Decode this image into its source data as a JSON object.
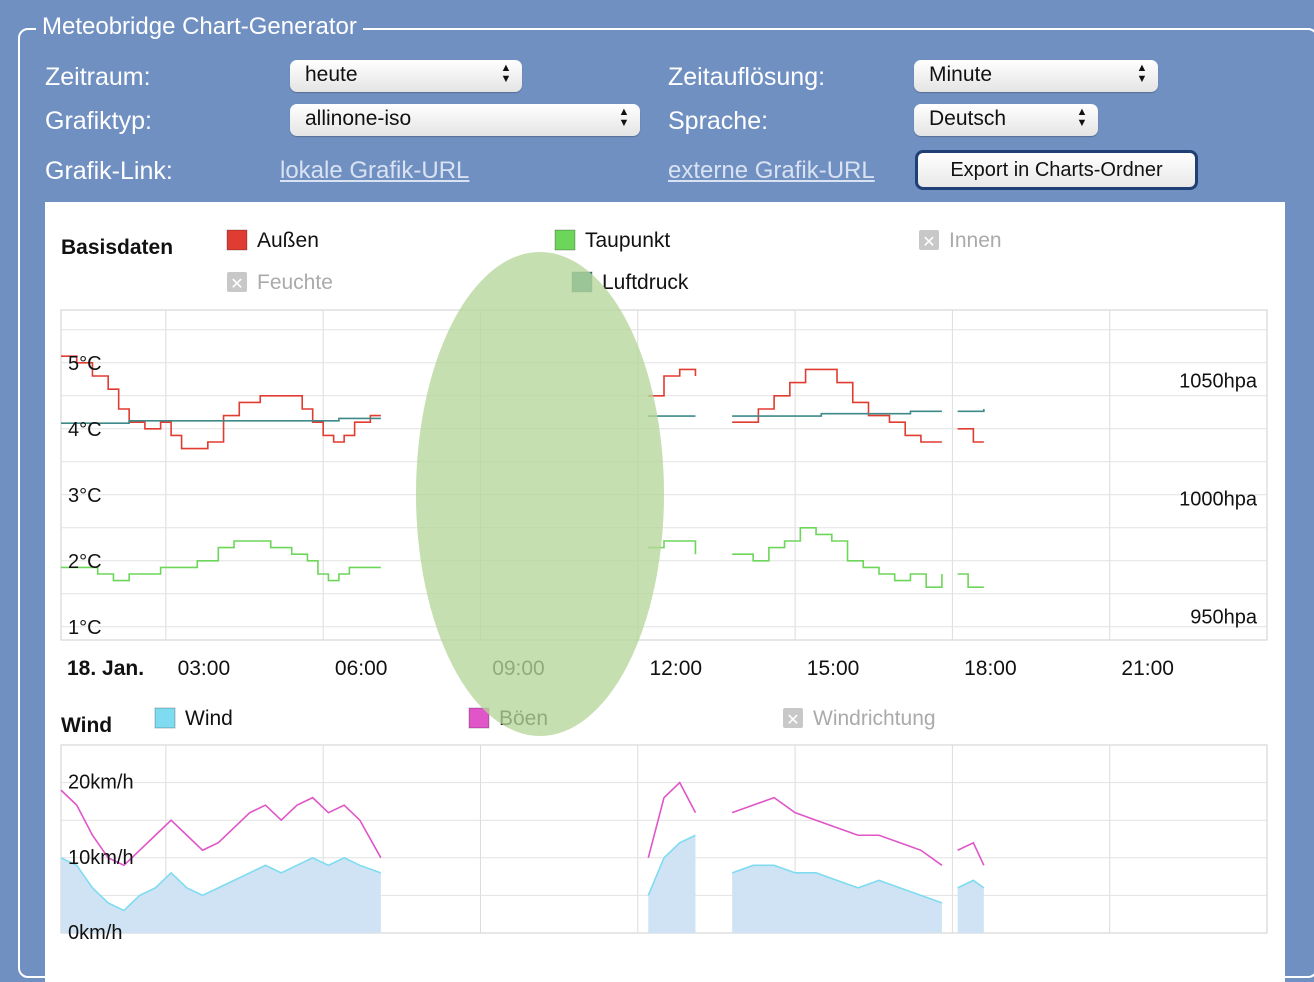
{
  "form": {
    "title": "Meteobridge Chart-Generator",
    "zeitraum_label": "Zeitraum:",
    "zeitraum_value": "heute",
    "zeitaufloesung_label": "Zeitauflösung:",
    "zeitaufloesung_value": "Minute",
    "grafiktyp_label": "Grafiktyp:",
    "grafiktyp_value": "allinone-iso",
    "sprache_label": "Sprache:",
    "sprache_value": "Deutsch",
    "grafiklink_label": "Grafik-Link:",
    "local_link": "lokale Grafik-URL",
    "external_link": "externe Grafik-URL",
    "export_button": "Export in Charts-Ordner"
  },
  "colors": {
    "background": "#7190c2",
    "temp_out": "#e03c31",
    "dewpoint": "#6dd65a",
    "pressure": "#3f8a88",
    "wind": "#7fdcf0",
    "wind_fill": "#cfe3f4",
    "gust": "#e055c8",
    "overlay": "#b5d69a"
  },
  "chart_data": [
    {
      "type": "line",
      "title": "Basisdaten",
      "date_label": "18. Jan.",
      "x_ticks": [
        "03:00",
        "06:00",
        "09:00",
        "12:00",
        "15:00",
        "18:00",
        "21:00"
      ],
      "x_range_hours": [
        1.0,
        24.0
      ],
      "y_left_ticks": [
        "5°C",
        "4°C",
        "3°C",
        "2°C",
        "1°C"
      ],
      "y_left_range": [
        0.8,
        5.8
      ],
      "y_right_ticks": [
        "1050hpa",
        "1000hpa",
        "950hpa"
      ],
      "y_right_range": [
        940,
        1080
      ],
      "legend": [
        {
          "name": "Außen",
          "color_key": "temp_out",
          "enabled": true
        },
        {
          "name": "Taupunkt",
          "color_key": "dewpoint",
          "enabled": true
        },
        {
          "name": "Innen",
          "color_key": "",
          "enabled": false
        },
        {
          "name": "Feuchte",
          "color_key": "",
          "enabled": false
        },
        {
          "name": "Luftdruck",
          "color_key": "pressure",
          "enabled": true
        }
      ],
      "series": [
        {
          "name": "Außen",
          "color_key": "temp_out",
          "axis": "left",
          "segments": [
            [
              [
                1.0,
                5.1
              ],
              [
                1.3,
                5.0
              ],
              [
                1.6,
                4.8
              ],
              [
                1.9,
                4.6
              ],
              [
                2.1,
                4.3
              ],
              [
                2.3,
                4.1
              ],
              [
                2.6,
                4.0
              ],
              [
                2.9,
                4.1
              ],
              [
                3.1,
                3.9
              ],
              [
                3.3,
                3.7
              ],
              [
                3.6,
                3.7
              ],
              [
                3.8,
                3.8
              ],
              [
                4.1,
                4.2
              ],
              [
                4.4,
                4.4
              ],
              [
                4.8,
                4.5
              ],
              [
                5.3,
                4.5
              ],
              [
                5.6,
                4.3
              ],
              [
                5.8,
                4.1
              ],
              [
                6.0,
                3.9
              ],
              [
                6.2,
                3.8
              ],
              [
                6.4,
                3.9
              ],
              [
                6.6,
                4.1
              ],
              [
                6.9,
                4.2
              ],
              [
                7.1,
                4.2
              ]
            ],
            [
              [
                12.2,
                4.5
              ],
              [
                12.5,
                4.8
              ],
              [
                12.8,
                4.9
              ],
              [
                13.1,
                4.8
              ]
            ],
            [
              [
                13.8,
                4.1
              ],
              [
                14.3,
                4.3
              ],
              [
                14.6,
                4.5
              ],
              [
                14.9,
                4.7
              ],
              [
                15.2,
                4.9
              ],
              [
                15.5,
                4.9
              ],
              [
                15.8,
                4.7
              ],
              [
                16.1,
                4.4
              ],
              [
                16.4,
                4.2
              ],
              [
                16.8,
                4.1
              ],
              [
                17.1,
                3.9
              ],
              [
                17.4,
                3.8
              ],
              [
                17.8,
                3.8
              ]
            ],
            [
              [
                18.1,
                4.0
              ],
              [
                18.4,
                3.8
              ],
              [
                18.6,
                3.8
              ]
            ]
          ]
        },
        {
          "name": "Luftdruck",
          "color_key": "pressure",
          "axis": "right",
          "segments": [
            [
              [
                1.0,
                1032
              ],
              [
                1.8,
                1032
              ],
              [
                2.3,
                1033
              ],
              [
                4.0,
                1033
              ],
              [
                5.8,
                1033
              ],
              [
                6.3,
                1034
              ],
              [
                7.1,
                1034
              ]
            ],
            [
              [
                12.2,
                1035
              ],
              [
                13.1,
                1035
              ]
            ],
            [
              [
                13.8,
                1035
              ],
              [
                15.5,
                1036
              ],
              [
                17.2,
                1037
              ],
              [
                17.8,
                1037
              ]
            ],
            [
              [
                18.1,
                1037
              ],
              [
                18.6,
                1038
              ]
            ]
          ]
        },
        {
          "name": "Taupunkt",
          "color_key": "dewpoint",
          "axis": "left",
          "segments": [
            [
              [
                1.0,
                1.9
              ],
              [
                1.4,
                1.9
              ],
              [
                1.7,
                1.8
              ],
              [
                2.0,
                1.7
              ],
              [
                2.3,
                1.8
              ],
              [
                2.6,
                1.8
              ],
              [
                2.9,
                1.9
              ],
              [
                3.2,
                1.9
              ],
              [
                3.6,
                2.0
              ],
              [
                4.0,
                2.2
              ],
              [
                4.3,
                2.3
              ],
              [
                4.6,
                2.3
              ],
              [
                5.0,
                2.2
              ],
              [
                5.4,
                2.1
              ],
              [
                5.7,
                2.0
              ],
              [
                5.9,
                1.8
              ],
              [
                6.1,
                1.7
              ],
              [
                6.3,
                1.8
              ],
              [
                6.5,
                1.9
              ],
              [
                6.8,
                1.9
              ],
              [
                7.1,
                1.9
              ]
            ],
            [
              [
                12.2,
                2.2
              ],
              [
                12.5,
                2.3
              ],
              [
                12.8,
                2.3
              ],
              [
                13.1,
                2.1
              ]
            ],
            [
              [
                13.8,
                2.1
              ],
              [
                14.2,
                2.0
              ],
              [
                14.5,
                2.2
              ],
              [
                14.8,
                2.3
              ],
              [
                15.1,
                2.5
              ],
              [
                15.4,
                2.4
              ],
              [
                15.7,
                2.3
              ],
              [
                16.0,
                2.0
              ],
              [
                16.3,
                1.9
              ],
              [
                16.6,
                1.8
              ],
              [
                16.9,
                1.7
              ],
              [
                17.2,
                1.8
              ],
              [
                17.5,
                1.6
              ],
              [
                17.8,
                1.8
              ]
            ],
            [
              [
                18.1,
                1.8
              ],
              [
                18.3,
                1.6
              ],
              [
                18.6,
                1.6
              ]
            ]
          ]
        }
      ]
    },
    {
      "type": "area",
      "title": "Wind",
      "x_ticks": [
        "03:00",
        "06:00",
        "09:00",
        "12:00",
        "15:00",
        "18:00",
        "21:00"
      ],
      "x_range_hours": [
        1.0,
        24.0
      ],
      "y_ticks": [
        "20km/h",
        "10km/h",
        "0km/h"
      ],
      "y_range": [
        0,
        25
      ],
      "legend": [
        {
          "name": "Wind",
          "color_key": "wind",
          "enabled": true
        },
        {
          "name": "Böen",
          "color_key": "gust",
          "enabled": true
        },
        {
          "name": "Windrichtung",
          "color_key": "",
          "enabled": false
        }
      ],
      "series": [
        {
          "name": "Wind",
          "color_key": "wind",
          "segments": [
            [
              [
                1.0,
                10
              ],
              [
                1.3,
                9
              ],
              [
                1.6,
                6
              ],
              [
                1.9,
                4
              ],
              [
                2.2,
                3
              ],
              [
                2.5,
                5
              ],
              [
                2.8,
                6
              ],
              [
                3.1,
                8
              ],
              [
                3.4,
                6
              ],
              [
                3.7,
                5
              ],
              [
                4.0,
                6
              ],
              [
                4.3,
                7
              ],
              [
                4.6,
                8
              ],
              [
                4.9,
                9
              ],
              [
                5.2,
                8
              ],
              [
                5.5,
                9
              ],
              [
                5.8,
                10
              ],
              [
                6.1,
                9
              ],
              [
                6.4,
                10
              ],
              [
                6.7,
                9
              ],
              [
                7.1,
                8
              ]
            ],
            [
              [
                12.2,
                5
              ],
              [
                12.5,
                10
              ],
              [
                12.8,
                12
              ],
              [
                13.1,
                13
              ]
            ],
            [
              [
                13.8,
                8
              ],
              [
                14.2,
                9
              ],
              [
                14.6,
                9
              ],
              [
                15.0,
                8
              ],
              [
                15.4,
                8
              ],
              [
                15.8,
                7
              ],
              [
                16.2,
                6
              ],
              [
                16.6,
                7
              ],
              [
                17.0,
                6
              ],
              [
                17.4,
                5
              ],
              [
                17.8,
                4
              ]
            ],
            [
              [
                18.1,
                6
              ],
              [
                18.4,
                7
              ],
              [
                18.6,
                6
              ]
            ]
          ]
        },
        {
          "name": "Böen",
          "color_key": "gust",
          "segments": [
            [
              [
                1.0,
                19
              ],
              [
                1.3,
                17
              ],
              [
                1.6,
                13
              ],
              [
                1.9,
                10
              ],
              [
                2.2,
                9
              ],
              [
                2.5,
                11
              ],
              [
                2.8,
                13
              ],
              [
                3.1,
                15
              ],
              [
                3.4,
                13
              ],
              [
                3.7,
                11
              ],
              [
                4.0,
                12
              ],
              [
                4.3,
                14
              ],
              [
                4.6,
                16
              ],
              [
                4.9,
                17
              ],
              [
                5.2,
                15
              ],
              [
                5.5,
                17
              ],
              [
                5.8,
                18
              ],
              [
                6.1,
                16
              ],
              [
                6.4,
                17
              ],
              [
                6.7,
                15
              ],
              [
                7.1,
                10
              ]
            ],
            [
              [
                12.2,
                10
              ],
              [
                12.5,
                18
              ],
              [
                12.8,
                20
              ],
              [
                13.1,
                16
              ]
            ],
            [
              [
                13.8,
                16
              ],
              [
                14.2,
                17
              ],
              [
                14.6,
                18
              ],
              [
                15.0,
                16
              ],
              [
                15.4,
                15
              ],
              [
                15.8,
                14
              ],
              [
                16.2,
                13
              ],
              [
                16.6,
                13
              ],
              [
                17.0,
                12
              ],
              [
                17.4,
                11
              ],
              [
                17.8,
                9
              ]
            ],
            [
              [
                18.1,
                11
              ],
              [
                18.4,
                12
              ],
              [
                18.6,
                9
              ]
            ]
          ]
        }
      ]
    }
  ]
}
